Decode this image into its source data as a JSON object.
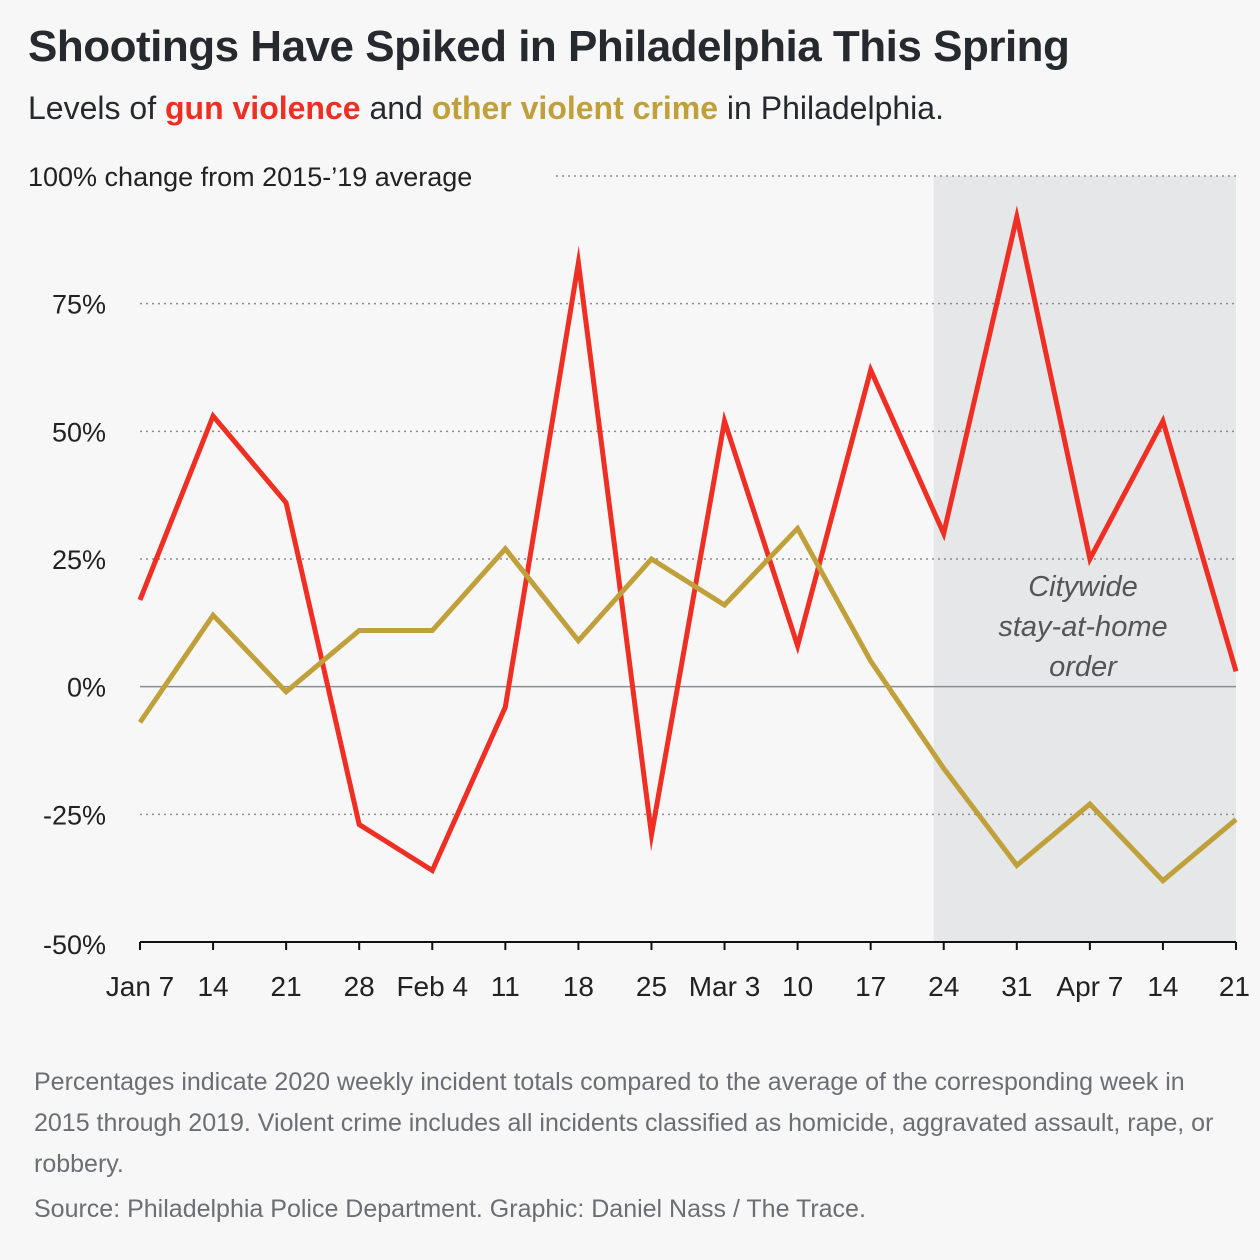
{
  "header": {
    "title": "Shootings Have Spiked in Philadelphia This Spring",
    "subtitle_prefix": "Levels of ",
    "subtitle_gun": "gun violence",
    "subtitle_mid": " and ",
    "subtitle_other": "other violent crime",
    "subtitle_suffix": " in Philadelphia."
  },
  "chart_data": {
    "type": "line",
    "ylabel": "100% change from 2015-’19 average",
    "ylim": [
      -50,
      100
    ],
    "yticks": [
      {
        "value": 100,
        "label": ""
      },
      {
        "value": 75,
        "label": "75%"
      },
      {
        "value": 50,
        "label": "50%"
      },
      {
        "value": 25,
        "label": "25%"
      },
      {
        "value": 0,
        "label": "0%"
      },
      {
        "value": -25,
        "label": "-25%"
      },
      {
        "value": -50,
        "label": "-50%"
      }
    ],
    "categories": [
      "Jan 7",
      "14",
      "21",
      "28",
      "Feb 4",
      "11",
      "18",
      "25",
      "Mar 3",
      "10",
      "17",
      "24",
      "31",
      "Apr 7",
      "14",
      "21"
    ],
    "series": [
      {
        "name": "gun violence",
        "color": "#ef2f24",
        "values": [
          17,
          53,
          36,
          -27,
          -36,
          -4,
          83,
          -29,
          52,
          8,
          62,
          30,
          92,
          25,
          52,
          3
        ]
      },
      {
        "name": "other violent crime",
        "color": "#bfa03a",
        "values": [
          -7,
          14,
          -1,
          11,
          11,
          27,
          9,
          25,
          16,
          31,
          5,
          -16,
          -35,
          -23,
          -38,
          -26
        ]
      }
    ],
    "annotation": {
      "lines": [
        "Citywide",
        "stay-at-home",
        "order"
      ],
      "start_category": "24",
      "end_category": "21"
    }
  },
  "footer": {
    "note": "Percentages indicate 2020 weekly incident totals compared to the average of the corresponding week in 2015 through 2019. Violent crime includes all incidents classified as homicide, aggravated assault, rape, or robbery.",
    "source": "Source: Philadelphia Police Department. Graphic: Daniel Nass / The Trace."
  }
}
